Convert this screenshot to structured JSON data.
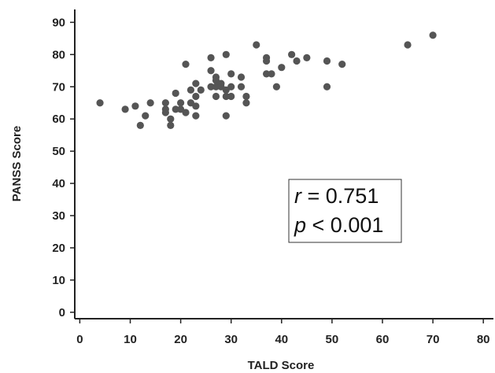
{
  "chart_data": {
    "type": "scatter",
    "xlabel": "TALD Score",
    "ylabel": "PANSS Score",
    "xlim": [
      -1,
      82
    ],
    "ylim": [
      -2,
      94
    ],
    "x_ticks": [
      0,
      10,
      20,
      30,
      40,
      50,
      60,
      70,
      80
    ],
    "y_ticks": [
      0,
      10,
      20,
      30,
      40,
      50,
      60,
      70,
      80,
      90
    ],
    "grid": false,
    "marker_color": "#555555",
    "series": [
      {
        "points": [
          [
            4,
            65
          ],
          [
            9,
            63
          ],
          [
            11,
            64
          ],
          [
            12,
            58
          ],
          [
            13,
            61
          ],
          [
            14,
            65
          ],
          [
            17,
            65
          ],
          [
            17,
            63
          ],
          [
            17,
            62
          ],
          [
            18,
            60
          ],
          [
            18,
            58
          ],
          [
            19,
            63
          ],
          [
            19,
            68
          ],
          [
            20,
            65
          ],
          [
            20,
            63
          ],
          [
            21,
            62
          ],
          [
            21,
            77
          ],
          [
            22,
            65
          ],
          [
            22,
            69
          ],
          [
            23,
            71
          ],
          [
            23,
            67
          ],
          [
            23,
            64
          ],
          [
            23,
            61
          ],
          [
            24,
            69
          ],
          [
            26,
            79
          ],
          [
            26,
            75
          ],
          [
            26,
            70
          ],
          [
            27,
            73
          ],
          [
            27,
            72
          ],
          [
            27,
            70
          ],
          [
            27,
            67
          ],
          [
            28,
            71
          ],
          [
            28,
            70
          ],
          [
            29,
            80
          ],
          [
            29,
            69
          ],
          [
            29,
            67
          ],
          [
            29,
            61
          ],
          [
            30,
            74
          ],
          [
            30,
            70
          ],
          [
            30,
            67
          ],
          [
            32,
            73
          ],
          [
            32,
            70
          ],
          [
            33,
            67
          ],
          [
            33,
            65
          ],
          [
            35,
            83
          ],
          [
            37,
            79
          ],
          [
            37,
            78
          ],
          [
            37,
            74
          ],
          [
            38,
            74
          ],
          [
            39,
            70
          ],
          [
            40,
            76
          ],
          [
            42,
            80
          ],
          [
            43,
            78
          ],
          [
            45,
            79
          ],
          [
            49,
            78
          ],
          [
            49,
            70
          ],
          [
            52,
            77
          ],
          [
            65,
            83
          ],
          [
            70,
            86
          ]
        ]
      }
    ],
    "annotation": {
      "r_symbol": "r",
      "r_text": " = 0.751",
      "p_symbol": "p",
      "p_text": " < 0.001"
    }
  }
}
